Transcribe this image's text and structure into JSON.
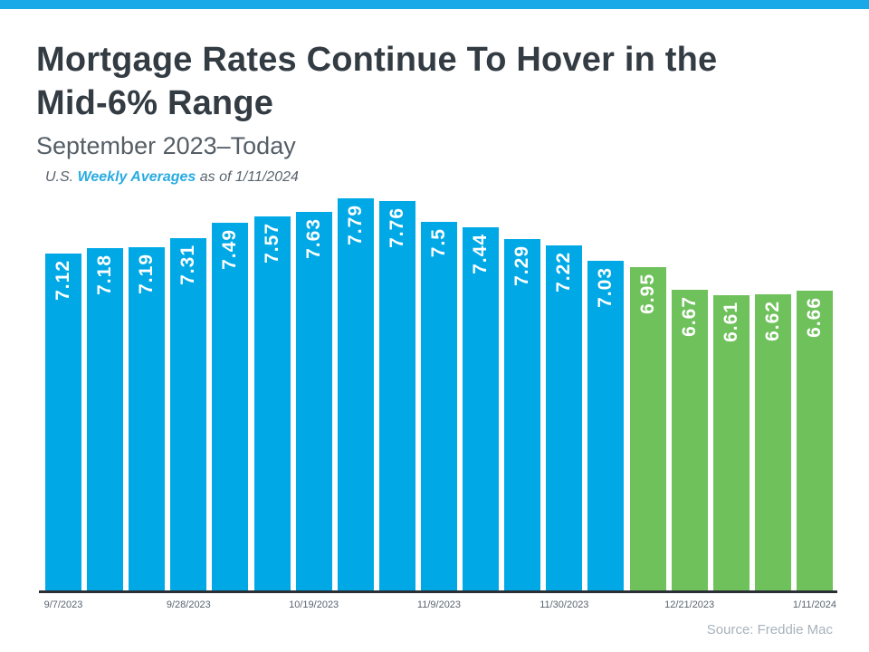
{
  "page": {
    "title_line1": "Mortgage Rates Continue To Hover in the",
    "title_line2": "Mid-6% Range",
    "subtitle": "September 2023–Today",
    "note": {
      "prefix": "U.S. ",
      "highlight": "Weekly Averages",
      "suffix": " as of 1/11/2024"
    },
    "source": "Source: Freddie Mac"
  },
  "colors": {
    "accent_strip": "#19a9e8",
    "bar_blue": "#00a9e6",
    "bar_green": "#6fc15b",
    "axis": "#2b3036",
    "title_text": "#333b43",
    "subtitle_text": "#555e66",
    "tick_text": "#5a6470",
    "link_blue": "#29abe2",
    "source_text": "#a8b2bb"
  },
  "chart_data": {
    "type": "bar",
    "title": "Mortgage Rates Continue To Hover in the Mid-6% Range",
    "subtitle": "September 2023–Today",
    "annotation": "U.S. Weekly Averages as of 1/11/2024",
    "source": "Source: Freddie Mac",
    "ylabel": "",
    "xlabel": "",
    "ylim": [
      3,
      8
    ],
    "grid": false,
    "legend": "none",
    "x_tick_labels": [
      "9/7/2023",
      "9/28/2023",
      "10/19/2023",
      "11/9/2023",
      "11/30/2023",
      "12/21/2023",
      "1/11/2024"
    ],
    "points": [
      {
        "label": "7.12",
        "value": 7.12,
        "group": "blue",
        "tick": "9/7/2023"
      },
      {
        "label": "7.18",
        "value": 7.18,
        "group": "blue",
        "tick": ""
      },
      {
        "label": "7.19",
        "value": 7.19,
        "group": "blue",
        "tick": ""
      },
      {
        "label": "7.31",
        "value": 7.31,
        "group": "blue",
        "tick": "9/28/2023"
      },
      {
        "label": "7.49",
        "value": 7.49,
        "group": "blue",
        "tick": ""
      },
      {
        "label": "7.57",
        "value": 7.57,
        "group": "blue",
        "tick": ""
      },
      {
        "label": "7.63",
        "value": 7.63,
        "group": "blue",
        "tick": "10/19/2023"
      },
      {
        "label": "7.79",
        "value": 7.79,
        "group": "blue",
        "tick": ""
      },
      {
        "label": "7.76",
        "value": 7.76,
        "group": "blue",
        "tick": ""
      },
      {
        "label": "7.5",
        "value": 7.5,
        "group": "blue",
        "tick": "11/9/2023"
      },
      {
        "label": "7.44",
        "value": 7.44,
        "group": "blue",
        "tick": ""
      },
      {
        "label": "7.29",
        "value": 7.29,
        "group": "blue",
        "tick": ""
      },
      {
        "label": "7.22",
        "value": 7.22,
        "group": "blue",
        "tick": "11/30/2023"
      },
      {
        "label": "7.03",
        "value": 7.03,
        "group": "blue",
        "tick": ""
      },
      {
        "label": "6.95",
        "value": 6.95,
        "group": "green",
        "tick": ""
      },
      {
        "label": "6.67",
        "value": 6.67,
        "group": "green",
        "tick": "12/21/2023"
      },
      {
        "label": "6.61",
        "value": 6.61,
        "group": "green",
        "tick": ""
      },
      {
        "label": "6.62",
        "value": 6.62,
        "group": "green",
        "tick": ""
      },
      {
        "label": "6.66",
        "value": 6.66,
        "group": "green",
        "tick": "1/11/2024"
      }
    ]
  }
}
